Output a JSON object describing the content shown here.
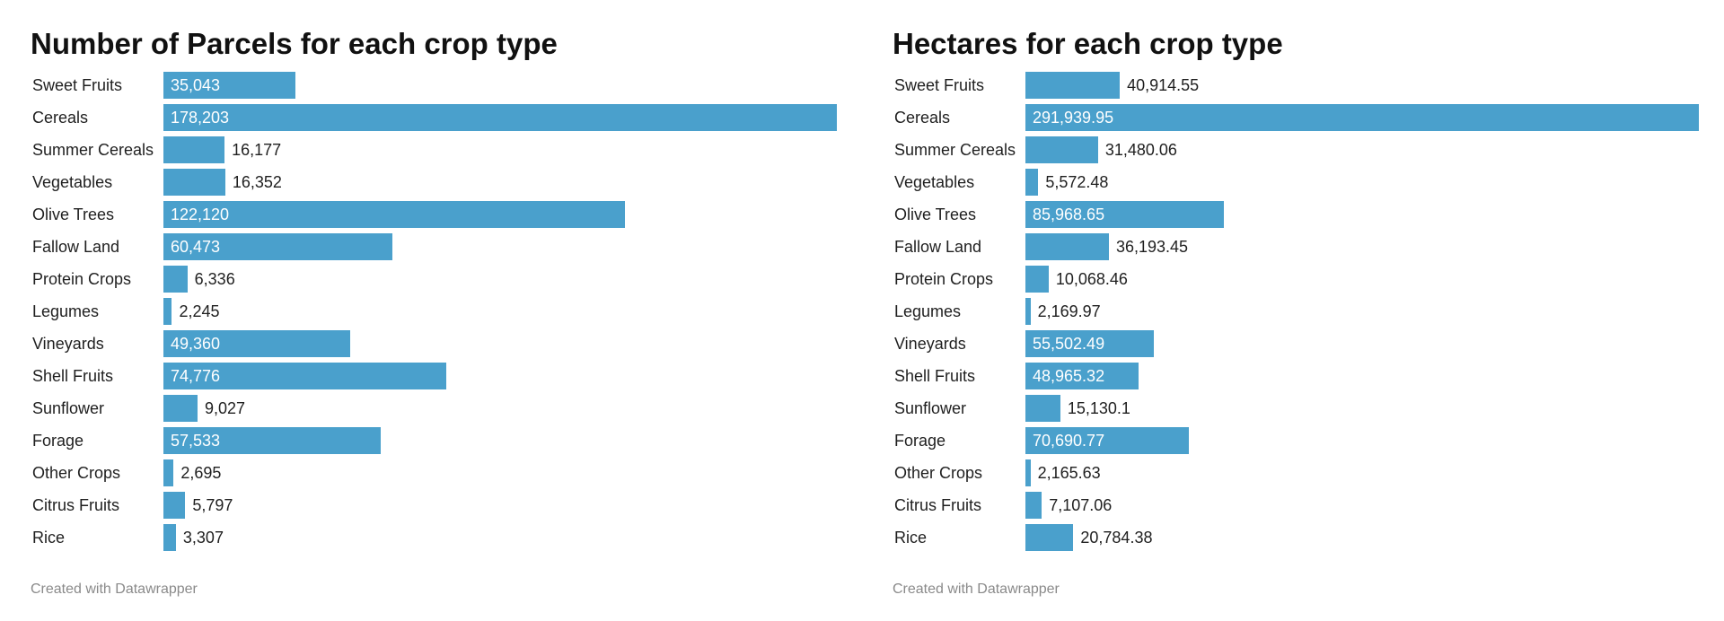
{
  "chart_data": [
    {
      "type": "bar",
      "orientation": "horizontal",
      "title": "Number of Parcels for each crop type",
      "credit": "Created with Datawrapper",
      "bar_color": "#4aa0cc",
      "categories": [
        "Sweet Fruits",
        "Cereals",
        "Summer Cereals",
        "Vegetables",
        "Olive Trees",
        "Fallow Land",
        "Protein Crops",
        "Legumes",
        "Vineyards",
        "Shell Fruits",
        "Sunflower",
        "Forage",
        "Other Crops",
        "Citrus Fruits",
        "Rice"
      ],
      "values": [
        35043,
        178203,
        16177,
        16352,
        122120,
        60473,
        6336,
        2245,
        49360,
        74776,
        9027,
        57533,
        2695,
        5797,
        3307
      ],
      "value_labels": [
        "35,043",
        "178,203",
        "16,177",
        "16,352",
        "122,120",
        "60,473",
        "6,336",
        "2,245",
        "49,360",
        "74,776",
        "9,027",
        "57,533",
        "2,695",
        "5,797",
        "3,307"
      ],
      "xlim": [
        0,
        178203
      ]
    },
    {
      "type": "bar",
      "orientation": "horizontal",
      "title": "Hectares for each crop type",
      "credit": "Created with Datawrapper",
      "bar_color": "#4aa0cc",
      "categories": [
        "Sweet Fruits",
        "Cereals",
        "Summer Cereals",
        "Vegetables",
        "Olive Trees",
        "Fallow Land",
        "Protein Crops",
        "Legumes",
        "Vineyards",
        "Shell Fruits",
        "Sunflower",
        "Forage",
        "Other Crops",
        "Citrus Fruits",
        "Rice"
      ],
      "values": [
        40914.55,
        291939.95,
        31480.06,
        5572.48,
        85968.65,
        36193.45,
        10068.46,
        2169.97,
        55502.49,
        48965.32,
        15130.1,
        70690.77,
        2165.63,
        7107.06,
        20784.38
      ],
      "value_labels": [
        "40,914.55",
        "291,939.95",
        "31,480.06",
        "5,572.48",
        "85,968.65",
        "36,193.45",
        "10,068.46",
        "2,169.97",
        "55,502.49",
        "48,965.32",
        "15,130.1",
        "70,690.77",
        "2,165.63",
        "7,107.06",
        "20,784.38"
      ],
      "xlim": [
        0,
        291939.95
      ]
    }
  ]
}
